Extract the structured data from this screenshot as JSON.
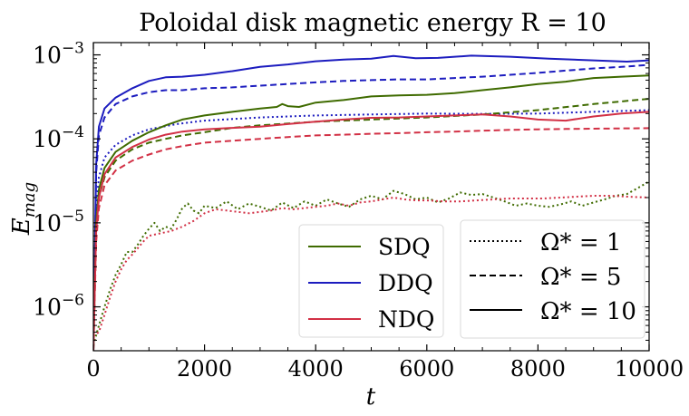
{
  "chart_data": {
    "type": "line",
    "title": "Poloidal disk magnetic energy R = 10",
    "xlabel": "t",
    "ylabel": "E_mag",
    "xlim": [
      0,
      10000
    ],
    "ylim": [
      3e-07,
      0.0014
    ],
    "yscale": "log",
    "x_ticks": [
      0,
      2000,
      4000,
      6000,
      8000,
      10000
    ],
    "x_tick_labels": [
      "0",
      "2000",
      "4000",
      "6000",
      "8000",
      "10000"
    ],
    "y_ticks": [
      1e-06,
      1e-05,
      0.0001,
      0.001
    ],
    "y_tick_labels": [
      {
        "base": "10",
        "exp": "−6"
      },
      {
        "base": "10",
        "exp": "−5"
      },
      {
        "base": "10",
        "exp": "−4"
      },
      {
        "base": "10",
        "exp": "−3"
      }
    ],
    "colors": {
      "SDQ": "#3f6b00",
      "DDQ": "#1c1cbf",
      "NDQ": "#d23045"
    },
    "legend_models": {
      "placement": "lower-center",
      "entries": [
        {
          "label": "SDQ",
          "color": "#3f6b00"
        },
        {
          "label": "DDQ",
          "color": "#1c1cbf"
        },
        {
          "label": "NDQ",
          "color": "#d23045"
        }
      ]
    },
    "legend_styles": {
      "placement": "lower-right",
      "entries": [
        {
          "label": "Ω* = 1",
          "dash": "dotted"
        },
        {
          "label": "Ω* = 5",
          "dash": "dashed"
        },
        {
          "label": "Ω* = 10",
          "dash": "solid"
        }
      ]
    },
    "series": [
      {
        "name": "DDQ Ω*=10",
        "model": "DDQ",
        "dash": "solid",
        "x": [
          0,
          50,
          100,
          200,
          400,
          700,
          1000,
          1300,
          1600,
          2000,
          2500,
          3000,
          3500,
          4000,
          4500,
          5000,
          5400,
          5800,
          6200,
          6800,
          7500,
          8200,
          9000,
          9600,
          10000
        ],
        "y": [
          3e-07,
          5e-05,
          0.00014,
          0.00023,
          0.00031,
          0.0004,
          0.00049,
          0.00054,
          0.00055,
          0.00058,
          0.00064,
          0.00072,
          0.00077,
          0.00084,
          0.00088,
          0.0009,
          0.00097,
          0.00091,
          0.00092,
          0.00098,
          0.00095,
          0.0009,
          0.00086,
          0.00083,
          0.00086
        ]
      },
      {
        "name": "DDQ Ω*=5",
        "model": "DDQ",
        "dash": "dashed",
        "x": [
          0,
          50,
          100,
          200,
          400,
          700,
          1000,
          1300,
          1600,
          2000,
          2500,
          3000,
          3500,
          4000,
          4500,
          5000,
          5500,
          6000,
          6500,
          7000,
          7500,
          8000,
          8500,
          9000,
          9500,
          10000
        ],
        "y": [
          3e-07,
          4e-05,
          0.00011,
          0.00018,
          0.00026,
          0.00032,
          0.00036,
          0.00038,
          0.00038,
          0.0004,
          0.00041,
          0.00043,
          0.00045,
          0.00047,
          0.00049,
          0.0005,
          0.00051,
          0.00051,
          0.00053,
          0.00055,
          0.00058,
          0.00061,
          0.00065,
          0.00069,
          0.00072,
          0.00076
        ]
      },
      {
        "name": "DDQ Ω*=1",
        "model": "DDQ",
        "dash": "dotted",
        "x": [
          0,
          50,
          100,
          200,
          400,
          700,
          1000,
          1500,
          2000,
          3000,
          4000,
          5000,
          6000,
          7000,
          8000,
          9000,
          10000
        ],
        "y": [
          3e-07,
          1.5e-05,
          3.5e-05,
          6e-05,
          8.5e-05,
          0.00011,
          0.00013,
          0.00015,
          0.000165,
          0.00018,
          0.00019,
          0.000195,
          0.0002,
          0.000198,
          0.0002,
          0.00021,
          0.00022
        ]
      },
      {
        "name": "SDQ Ω*=10",
        "model": "SDQ",
        "dash": "solid",
        "x": [
          0,
          50,
          100,
          200,
          400,
          700,
          1000,
          1300,
          1600,
          2000,
          2500,
          3000,
          3300,
          3400,
          3500,
          3700,
          4000,
          4500,
          5000,
          5500,
          6000,
          6500,
          7000,
          7500,
          8000,
          8500,
          9000,
          9500,
          10000
        ],
        "y": [
          3e-07,
          1e-05,
          2.5e-05,
          4.5e-05,
          7e-05,
          9.5e-05,
          0.00012,
          0.000145,
          0.00017,
          0.00019,
          0.00021,
          0.00023,
          0.00024,
          0.00026,
          0.000245,
          0.00024,
          0.00027,
          0.00029,
          0.00032,
          0.00033,
          0.000335,
          0.00035,
          0.00038,
          0.00041,
          0.00045,
          0.00048,
          0.00053,
          0.00055,
          0.00057
        ]
      },
      {
        "name": "SDQ Ω*=5",
        "model": "SDQ",
        "dash": "dashed",
        "x": [
          0,
          50,
          100,
          200,
          400,
          700,
          1000,
          1300,
          1600,
          2000,
          2500,
          3000,
          4000,
          5000,
          6000,
          7000,
          8000,
          9000,
          10000
        ],
        "y": [
          3e-07,
          8e-06,
          2e-05,
          3.5e-05,
          5.5e-05,
          7.5e-05,
          9e-05,
          0.0001,
          0.00011,
          0.00012,
          0.000135,
          0.000145,
          0.00016,
          0.00017,
          0.00018,
          0.000195,
          0.00022,
          0.00026,
          0.0003
        ]
      },
      {
        "name": "SDQ Ω*=1",
        "model": "SDQ",
        "dash": "dotted",
        "x": [
          0,
          100,
          200,
          300,
          400,
          500,
          600,
          700,
          800,
          900,
          1000,
          1100,
          1200,
          1300,
          1400,
          1500,
          1600,
          1700,
          1800,
          1900,
          2000,
          2200,
          2400,
          2600,
          2800,
          3000,
          3200,
          3400,
          3600,
          3800,
          4000,
          4200,
          4400,
          4600,
          4800,
          5000,
          5200,
          5400,
          5600,
          5800,
          6000,
          6200,
          6400,
          6600,
          6800,
          7000,
          7200,
          7400,
          7600,
          7800,
          8000,
          8200,
          8400,
          8600,
          8800,
          9000,
          9200,
          9400,
          9600,
          9800,
          10000
        ],
        "y": [
          3.5e-07,
          6e-07,
          1e-06,
          1.6e-06,
          2.4e-06,
          3.2e-06,
          4.5e-06,
          4.5e-06,
          5.5e-06,
          7e-06,
          8.5e-06,
          1e-05,
          8e-06,
          9e-06,
          8.5e-06,
          1.1e-05,
          1.5e-05,
          1.7e-05,
          1.4e-05,
          1.3e-05,
          1.6e-05,
          1.5e-05,
          1.8e-05,
          1.45e-05,
          1.7e-05,
          1.55e-05,
          1.4e-05,
          1.75e-05,
          1.5e-05,
          1.8e-05,
          1.6e-05,
          1.9e-05,
          1.7e-05,
          1.55e-05,
          1.9e-05,
          2.1e-05,
          1.9e-05,
          2.4e-05,
          2.2e-05,
          1.9e-05,
          2e-05,
          1.75e-05,
          1.95e-05,
          2.3e-05,
          2.15e-05,
          2.2e-05,
          2e-05,
          1.8e-05,
          1.6e-05,
          1.7e-05,
          1.6e-05,
          1.55e-05,
          1.65e-05,
          1.8e-05,
          1.6e-05,
          1.75e-05,
          1.9e-05,
          2.1e-05,
          2.2e-05,
          2.6e-05,
          3.1e-05
        ]
      },
      {
        "name": "NDQ Ω*=10",
        "model": "NDQ",
        "dash": "solid",
        "x": [
          0,
          50,
          100,
          200,
          400,
          700,
          1000,
          1300,
          1600,
          2000,
          2500,
          3000,
          3500,
          4000,
          4500,
          5000,
          5500,
          6000,
          6500,
          7000,
          7500,
          8000,
          8500,
          9000,
          9500,
          10000
        ],
        "y": [
          3e-07,
          8e-06,
          2e-05,
          3.8e-05,
          6e-05,
          8e-05,
          9.8e-05,
          0.000112,
          0.000122,
          0.00013,
          0.000135,
          0.00014,
          0.00015,
          0.00016,
          0.00017,
          0.000178,
          0.00018,
          0.000185,
          0.00019,
          0.000195,
          0.000185,
          0.00017,
          0.000165,
          0.000185,
          0.0002,
          0.00021
        ]
      },
      {
        "name": "NDQ Ω*=5",
        "model": "NDQ",
        "dash": "dashed",
        "x": [
          0,
          50,
          100,
          200,
          400,
          700,
          1000,
          1300,
          1600,
          2000,
          2500,
          3000,
          3500,
          4000,
          4500,
          5000,
          5500,
          6000,
          6500,
          7000,
          7500,
          8000,
          8500,
          9000,
          9500,
          10000
        ],
        "y": [
          3e-07,
          6e-06,
          1.5e-05,
          2.8e-05,
          4.2e-05,
          5.5e-05,
          6.5e-05,
          7.5e-05,
          8.2e-05,
          9e-05,
          9.5e-05,
          0.0001,
          0.000105,
          0.00011,
          0.000112,
          0.000115,
          0.000117,
          0.00012,
          0.000122,
          0.000125,
          0.000128,
          0.00013,
          0.000131,
          0.000132,
          0.000133,
          0.000134
        ]
      },
      {
        "name": "NDQ Ω*=1",
        "model": "NDQ",
        "dash": "dotted",
        "x": [
          0,
          100,
          200,
          300,
          400,
          500,
          600,
          700,
          800,
          900,
          1000,
          1200,
          1400,
          1600,
          1800,
          2000,
          2200,
          2400,
          2600,
          2800,
          3000,
          3200,
          3400,
          3600,
          3800,
          4000,
          4200,
          4400,
          4600,
          4800,
          5000,
          5200,
          5400,
          5600,
          5800,
          6000,
          6300,
          6600,
          6900,
          7200,
          7500,
          7800,
          8100,
          8400,
          8700,
          9000,
          9300,
          9600,
          10000
        ],
        "y": [
          4.5e-07,
          5e-07,
          8e-07,
          1.3e-06,
          2e-06,
          2.8e-06,
          3.6e-06,
          4.2e-06,
          5e-06,
          6e-06,
          7e-06,
          7.5e-06,
          8e-06,
          9e-06,
          1.05e-05,
          1.3e-05,
          1.45e-05,
          1.4e-05,
          1.35e-05,
          1.3e-05,
          1.35e-05,
          1.4e-05,
          1.5e-05,
          1.45e-05,
          1.5e-05,
          1.55e-05,
          1.6e-05,
          1.7e-05,
          1.6e-05,
          1.75e-05,
          1.8e-05,
          1.9e-05,
          2e-05,
          1.9e-05,
          1.85e-05,
          1.85e-05,
          1.8e-05,
          1.8e-05,
          1.85e-05,
          1.9e-05,
          1.95e-05,
          1.95e-05,
          1.95e-05,
          2e-05,
          2.05e-05,
          2.1e-05,
          2.1e-05,
          2.05e-05,
          2e-05
        ]
      }
    ]
  }
}
